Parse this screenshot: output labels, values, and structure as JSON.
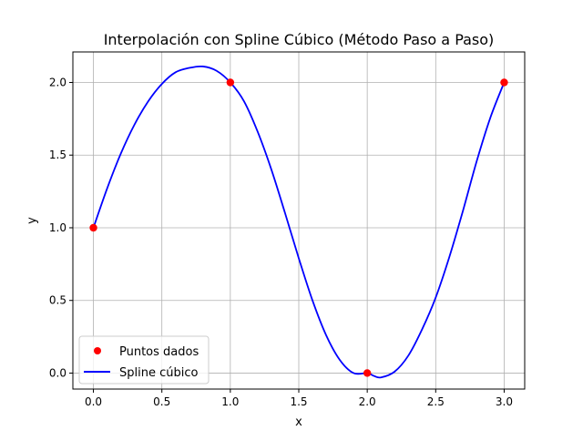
{
  "chart_data": {
    "type": "line",
    "title": "Interpolación con Spline Cúbico (Método Paso a Paso)",
    "xlabel": "x",
    "ylabel": "y",
    "xlim": [
      -0.15,
      3.15
    ],
    "ylim": [
      -0.11,
      2.21
    ],
    "xticks": [
      0.0,
      0.5,
      1.0,
      1.5,
      2.0,
      2.5,
      3.0
    ],
    "xtick_labels": [
      "0.0",
      "0.5",
      "1.0",
      "1.5",
      "2.0",
      "2.5",
      "3.0"
    ],
    "yticks": [
      0.0,
      0.5,
      1.0,
      1.5,
      2.0
    ],
    "ytick_labels": [
      "0.0",
      "0.5",
      "1.0",
      "1.5",
      "2.0"
    ],
    "grid": true,
    "legend_position": "lower-left",
    "series": [
      {
        "name": "Puntos dados",
        "kind": "scatter",
        "color": "#ff0000",
        "x": [
          0,
          1,
          2,
          3
        ],
        "y": [
          1,
          2,
          0,
          2
        ]
      },
      {
        "name": "Spline cúbico",
        "kind": "line",
        "color": "#0000ff",
        "x": [
          0.0,
          0.1,
          0.2,
          0.3,
          0.4,
          0.5,
          0.6,
          0.7,
          0.8,
          0.9,
          1.0,
          1.1,
          1.2,
          1.3,
          1.4,
          1.5,
          1.6,
          1.7,
          1.8,
          1.9,
          2.0,
          2.05,
          2.1,
          2.2,
          2.3,
          2.4,
          2.5,
          2.6,
          2.7,
          2.8,
          2.9,
          3.0
        ],
        "y": [
          1.0,
          1.27,
          1.51,
          1.71,
          1.87,
          1.99,
          2.07,
          2.1,
          2.11,
          2.08,
          2.0,
          1.87,
          1.66,
          1.4,
          1.1,
          0.79,
          0.5,
          0.26,
          0.09,
          0.0,
          0.0,
          -0.02,
          -0.03,
          0.01,
          0.12,
          0.3,
          0.52,
          0.8,
          1.12,
          1.46,
          1.76,
          2.0
        ]
      }
    ]
  }
}
